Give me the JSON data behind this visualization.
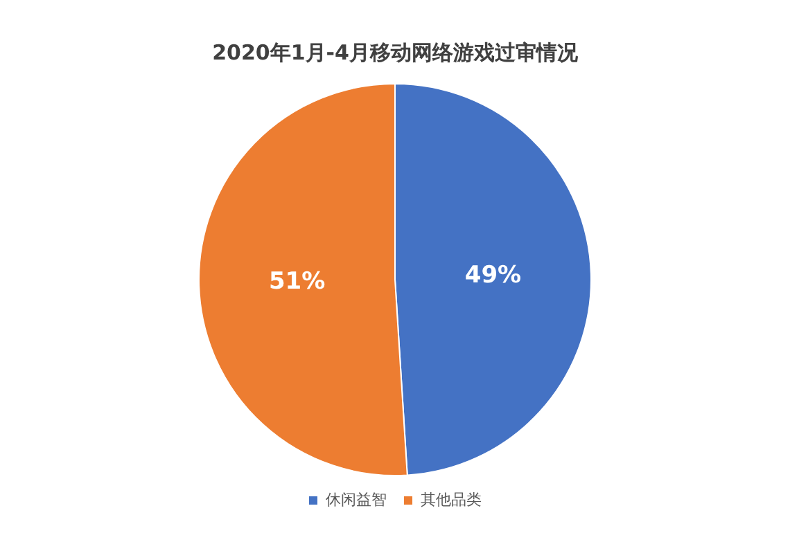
{
  "chart_data": {
    "type": "pie",
    "title": "2020年1月-4月移动网络游戏过审情况",
    "categories": [
      "休闲益智",
      "其他品类"
    ],
    "values": [
      49,
      51
    ],
    "colors": [
      "#4472c4",
      "#ed7d31"
    ],
    "value_labels": [
      "49%",
      "51%"
    ],
    "legend": "bottom"
  }
}
